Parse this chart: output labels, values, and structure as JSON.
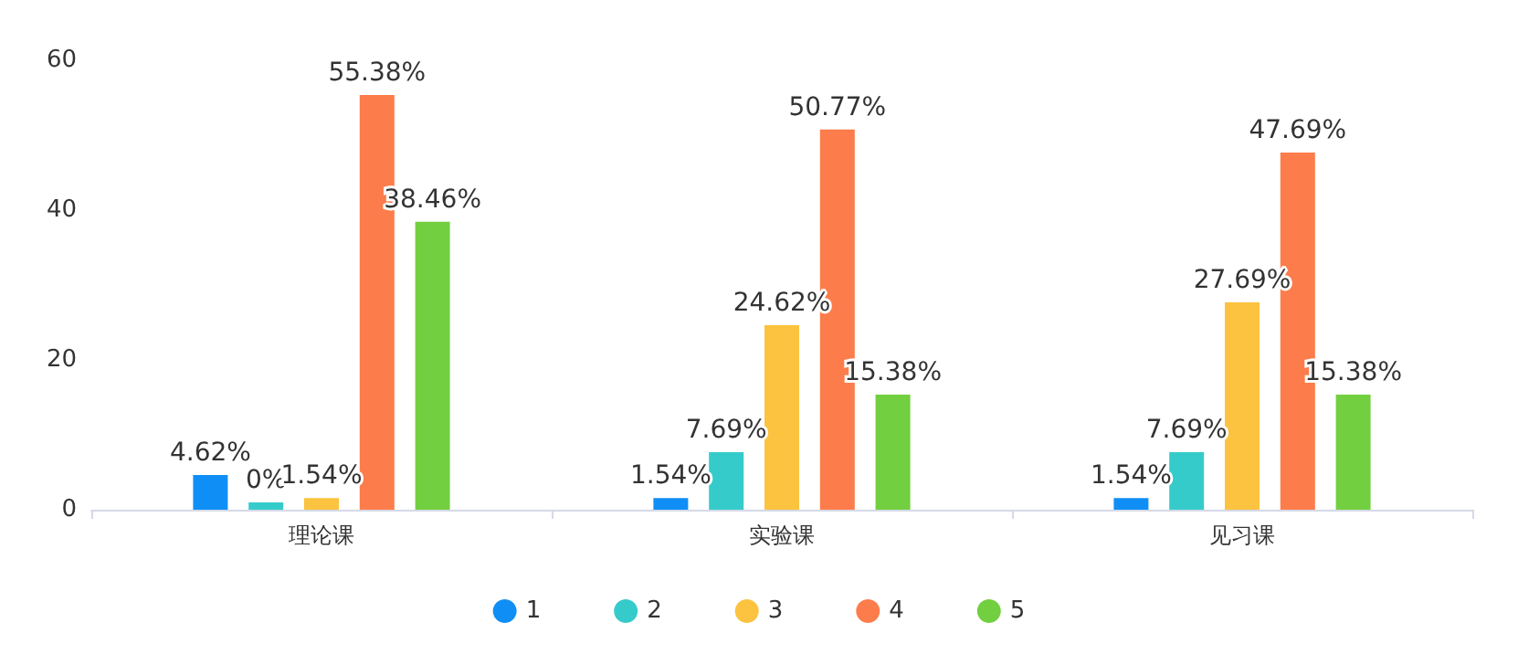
{
  "chart_data": {
    "type": "bar",
    "categories": [
      "理论课",
      "实验课",
      "见习课"
    ],
    "series": [
      {
        "name": "1",
        "color": "#0f8ff5",
        "values": [
          4.62,
          1.54,
          1.54
        ],
        "value_labels": [
          "4.62%",
          "1.54%",
          "1.54%"
        ]
      },
      {
        "name": "2",
        "color": "#36cbcb",
        "values": [
          0,
          7.69,
          7.69
        ],
        "value_labels": [
          "0%",
          "7.69%",
          "7.69%"
        ]
      },
      {
        "name": "3",
        "color": "#fbc33f",
        "values": [
          1.54,
          24.62,
          27.69
        ],
        "value_labels": [
          "1.54%",
          "24.62%",
          "27.69%"
        ]
      },
      {
        "name": "4",
        "color": "#fd7c4b",
        "values": [
          55.38,
          50.77,
          47.69
        ],
        "value_labels": [
          "55.38%",
          "50.77%",
          "47.69%"
        ]
      },
      {
        "name": "5",
        "color": "#72cf3f",
        "values": [
          38.46,
          15.38,
          15.38
        ],
        "value_labels": [
          "38.46%",
          "15.38%",
          "15.38%"
        ]
      }
    ],
    "ylim": [
      0,
      60
    ],
    "yticks": [
      0,
      20,
      40,
      60
    ],
    "grid": false,
    "legend": "bottom"
  }
}
